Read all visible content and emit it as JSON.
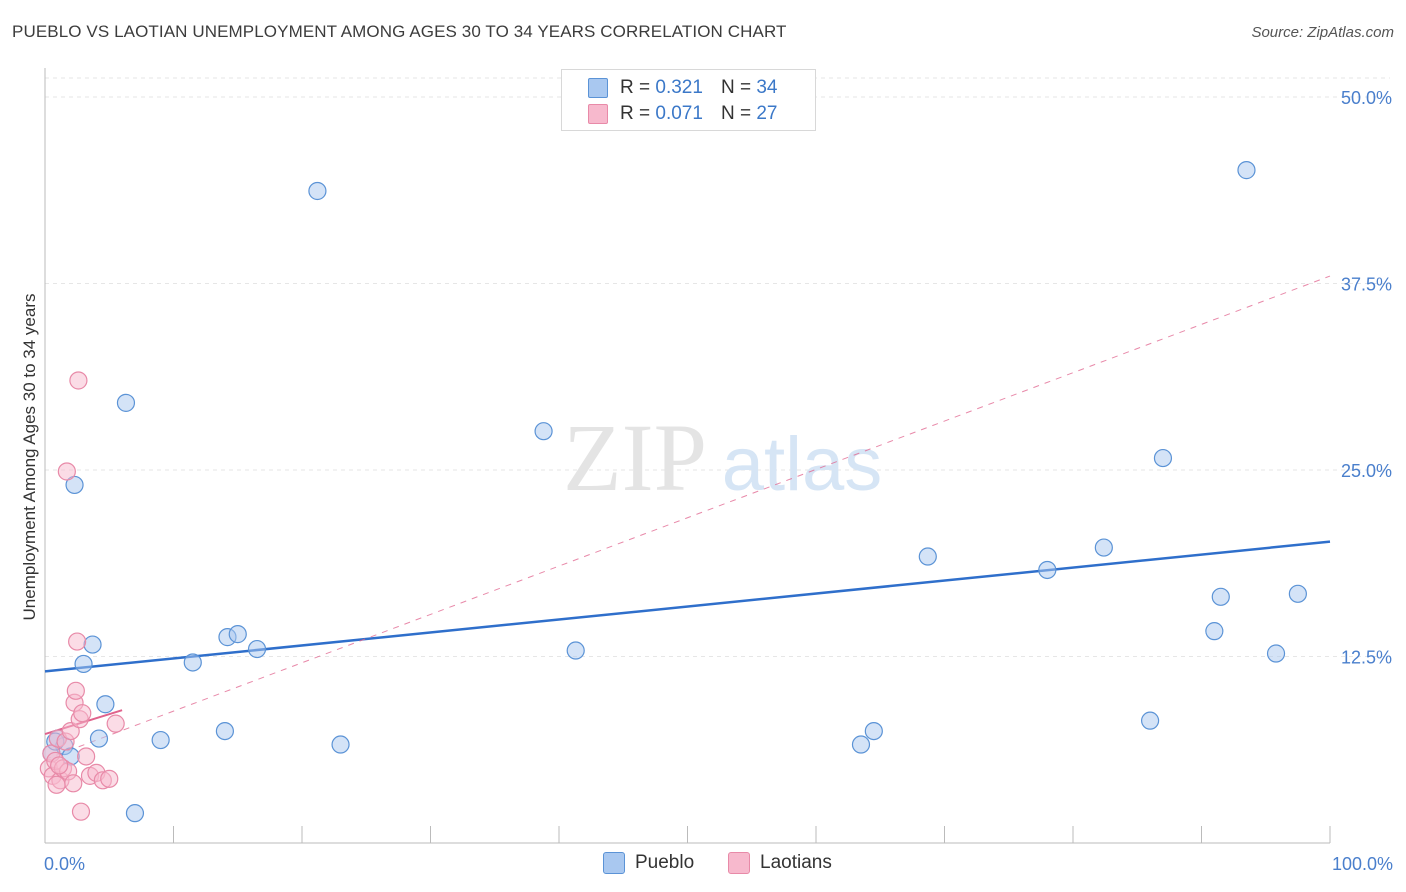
{
  "title": "PUEBLO VS LAOTIAN UNEMPLOYMENT AMONG AGES 30 TO 34 YEARS CORRELATION CHART",
  "source": "Source: ZipAtlas.com",
  "watermark": {
    "zip": "ZIP",
    "atlas": "atlas"
  },
  "legend": {
    "r_label": "R =",
    "n_label": "N =",
    "pueblo": {
      "r": "0.321",
      "n": "34"
    },
    "laotians": {
      "r": "0.071",
      "n": "27"
    }
  },
  "colors": {
    "pueblo_fill": "#a9c8f0",
    "pueblo_stroke": "#5b93d6",
    "pueblo_line": "#2f6fcb",
    "laotians_fill": "#f7b9cd",
    "laotians_stroke": "#e88aa8",
    "laotians_line": "#e0628c",
    "axis_text": "#4a7fcc"
  },
  "chart_data": {
    "type": "scatter",
    "title": "PUEBLO VS LAOTIAN UNEMPLOYMENT AMONG AGES 30 TO 34 YEARS CORRELATION CHART",
    "xlabel": "",
    "ylabel": "Unemployment Among Ages 30 to 34 years",
    "xlim": [
      0,
      100
    ],
    "ylim": [
      0,
      50
    ],
    "x_tick_labels": [
      "0.0%",
      "100.0%"
    ],
    "y_ticks": [
      12.5,
      25.0,
      37.5,
      50.0
    ],
    "y_tick_labels": [
      "12.5%",
      "25.0%",
      "37.5%",
      "50.0%"
    ],
    "grid": true,
    "series": [
      {
        "name": "Pueblo",
        "points": [
          [
            0.5,
            6.0
          ],
          [
            1.0,
            7.0
          ],
          [
            1.5,
            6.5
          ],
          [
            2.0,
            5.8
          ],
          [
            2.3,
            24.0
          ],
          [
            3.0,
            12.0
          ],
          [
            3.7,
            13.3
          ],
          [
            4.2,
            7.0
          ],
          [
            4.7,
            9.3
          ],
          [
            6.3,
            29.5
          ],
          [
            7.0,
            2.0
          ],
          [
            9.0,
            6.9
          ],
          [
            11.5,
            12.1
          ],
          [
            14.0,
            7.5
          ],
          [
            14.2,
            13.8
          ],
          [
            15.0,
            14.0
          ],
          [
            16.5,
            13.0
          ],
          [
            21.2,
            43.7
          ],
          [
            23.0,
            6.6
          ],
          [
            38.8,
            27.6
          ],
          [
            41.3,
            12.9
          ],
          [
            63.5,
            6.6
          ],
          [
            64.5,
            7.5
          ],
          [
            68.7,
            19.2
          ],
          [
            78.0,
            18.3
          ],
          [
            82.4,
            19.8
          ],
          [
            86.0,
            8.2
          ],
          [
            87.0,
            25.8
          ],
          [
            91.0,
            14.2
          ],
          [
            91.5,
            16.5
          ],
          [
            93.5,
            45.1
          ],
          [
            95.8,
            12.7
          ],
          [
            97.5,
            16.7
          ],
          [
            0.8,
            6.8
          ]
        ]
      },
      {
        "name": "Laotians",
        "points": [
          [
            0.3,
            5.0
          ],
          [
            0.5,
            6.0
          ],
          [
            0.6,
            4.5
          ],
          [
            0.8,
            5.5
          ],
          [
            1.0,
            7.0
          ],
          [
            1.2,
            4.2
          ],
          [
            1.4,
            5.0
          ],
          [
            1.6,
            6.8
          ],
          [
            1.8,
            4.8
          ],
          [
            2.0,
            7.5
          ],
          [
            2.2,
            4.0
          ],
          [
            2.3,
            9.4
          ],
          [
            2.4,
            10.2
          ],
          [
            2.5,
            13.5
          ],
          [
            2.6,
            31.0
          ],
          [
            2.7,
            8.3
          ],
          [
            2.8,
            2.1
          ],
          [
            2.9,
            8.7
          ],
          [
            3.2,
            5.8
          ],
          [
            3.5,
            4.5
          ],
          [
            4.0,
            4.7
          ],
          [
            4.5,
            4.2
          ],
          [
            5.0,
            4.3
          ],
          [
            5.5,
            8.0
          ],
          [
            1.7,
            24.9
          ],
          [
            1.1,
            5.2
          ],
          [
            0.9,
            3.9
          ]
        ]
      }
    ],
    "trend_lines": [
      {
        "series": "Pueblo",
        "style": "solid",
        "x": [
          0,
          100
        ],
        "y": [
          11.5,
          20.2
        ]
      },
      {
        "series": "Laotians",
        "style": "solid",
        "x": [
          0,
          6
        ],
        "y": [
          7.3,
          8.9
        ]
      },
      {
        "series": "Laotians",
        "style": "dashed",
        "x": [
          0,
          100
        ],
        "y": [
          5.6,
          38.0
        ]
      }
    ]
  },
  "bottom_legend": {
    "pueblo": "Pueblo",
    "laotians": "Laotians"
  }
}
